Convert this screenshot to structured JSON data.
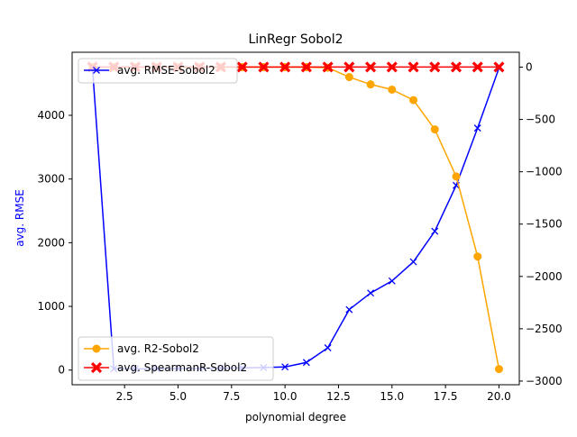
{
  "chart_data": {
    "type": "line",
    "title": "LinRegr Sobol2",
    "xlabel": "polynomial degree",
    "ylabel_left": "avg. RMSE",
    "ylabel_right": "",
    "x": [
      1,
      2,
      3,
      4,
      5,
      6,
      7,
      8,
      9,
      10,
      11,
      12,
      13,
      14,
      15,
      16,
      17,
      18,
      19,
      20
    ],
    "xlim": [
      0.05,
      20.95
    ],
    "ylim_left": [
      -230,
      4990
    ],
    "ylim_right": [
      -3035,
      142
    ],
    "xticks": [
      2.5,
      5.0,
      7.5,
      10.0,
      12.5,
      15.0,
      17.5,
      20.0
    ],
    "xtick_labels": [
      "2.5",
      "5.0",
      "7.5",
      "10.0",
      "12.5",
      "15.0",
      "17.5",
      "20.0"
    ],
    "yticks_left": [
      0,
      1000,
      2000,
      3000,
      4000
    ],
    "ytick_labels_left": [
      "0",
      "1000",
      "2000",
      "3000",
      "4000"
    ],
    "yticks_right": [
      0,
      -500,
      -1000,
      -1500,
      -2000,
      -2500,
      -3000
    ],
    "ytick_labels_right": [
      "0",
      "−500",
      "−1000",
      "−1500",
      "−2000",
      "−2500",
      "−3000"
    ],
    "series": [
      {
        "name": "avg. RMSE-Sobol2",
        "axis": "left",
        "color": "#0000ff",
        "marker": "x",
        "values": [
          4750,
          20,
          20,
          20,
          25,
          25,
          30,
          35,
          40,
          50,
          120,
          350,
          950,
          1210,
          1400,
          1700,
          2180,
          2900,
          3800,
          4740
        ]
      },
      {
        "name": "avg. R2-Sobol2",
        "axis": "right",
        "color": "#ffa500",
        "marker": "o",
        "values": [
          0,
          0,
          0,
          0,
          0,
          0,
          0,
          0,
          0,
          0,
          0,
          -5,
          -95,
          -165,
          -215,
          -315,
          -595,
          -1045,
          -1810,
          -2885
        ]
      },
      {
        "name": "avg. SpearmanR-Sobol2",
        "axis": "right",
        "color": "#ff0000",
        "marker": "X",
        "values": [
          1,
          1,
          1,
          1,
          1,
          1,
          1,
          1,
          1,
          1,
          1,
          1,
          1,
          1,
          1,
          1,
          1,
          1,
          1,
          1
        ]
      }
    ],
    "legends": [
      {
        "placement": "upper-left",
        "entries": [
          "avg. RMSE-Sobol2"
        ]
      },
      {
        "placement": "lower-left",
        "entries": [
          "avg. R2-Sobol2",
          "avg. SpearmanR-Sobol2"
        ]
      }
    ]
  }
}
